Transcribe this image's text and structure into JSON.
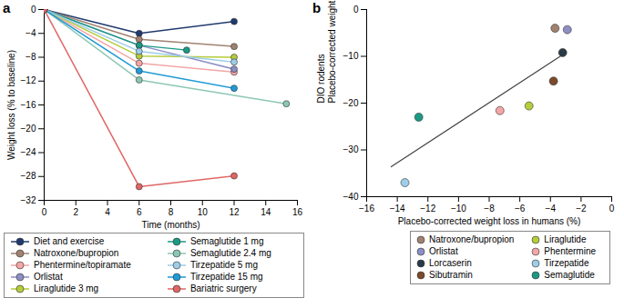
{
  "chart_data": [
    {
      "type": "line",
      "title": "a",
      "marker": "circle",
      "grid": false,
      "x_label": "Time (months)",
      "y_label": "Weight loss (% to baseline)",
      "xlim": [
        0,
        16
      ],
      "xticks": [
        0,
        2,
        4,
        6,
        8,
        10,
        12,
        14,
        16
      ],
      "ylim": [
        -32,
        0
      ],
      "yticks": [
        0,
        -4,
        -8,
        -12,
        -16,
        -20,
        -24,
        -28,
        -32
      ],
      "series": [
        {
          "name": "Diet and exercise",
          "color": "#1f3a6e",
          "x": [
            0,
            6,
            12
          ],
          "values": [
            0,
            -4,
            -2
          ]
        },
        {
          "name": "Natroxone/bupropion",
          "color": "#a08270",
          "x": [
            0,
            6,
            12
          ],
          "values": [
            0,
            -5,
            -6.2
          ]
        },
        {
          "name": "Phentermine/topiramate",
          "color": "#f4a6a6",
          "x": [
            0,
            6,
            12
          ],
          "values": [
            0,
            -9,
            -10.5
          ]
        },
        {
          "name": "Orlistat",
          "color": "#8d8fc4",
          "x": [
            0,
            6,
            12
          ],
          "values": [
            0,
            -6,
            -10
          ]
        },
        {
          "name": "Liraglutide 3 mg",
          "color": "#b5cc3b",
          "x": [
            0,
            6,
            12
          ],
          "values": [
            0,
            -7.8,
            -8
          ]
        },
        {
          "name": "Semaglutide 1 mg",
          "color": "#1a9a85",
          "x": [
            0,
            6,
            9
          ],
          "values": [
            0,
            -6,
            -6.8
          ]
        },
        {
          "name": "Semaglutide 2.4 mg",
          "color": "#8cc7b4",
          "x": [
            0,
            6,
            15.3
          ],
          "values": [
            0,
            -11.8,
            -15.8
          ]
        },
        {
          "name": "Tirzepatide 5 mg",
          "color": "#9ecde8",
          "x": [
            0,
            6,
            12
          ],
          "values": [
            0,
            -7,
            -8.8
          ]
        },
        {
          "name": "Tirzepatide 15 mg",
          "color": "#1f9ad6",
          "x": [
            0,
            6,
            12
          ],
          "values": [
            0,
            -10.3,
            -13.2
          ]
        },
        {
          "name": "Bariatric surgery",
          "color": "#e06666",
          "x": [
            0,
            6,
            12
          ],
          "values": [
            0,
            -29.7,
            -27.9
          ]
        }
      ]
    },
    {
      "type": "scatter",
      "title": "b",
      "marker": "circle",
      "grid": false,
      "x_label": "Placebo-corrected weight loss in humans (%)",
      "y_label": "DIO rodents\nPlacebo-corrected weight loss (%)",
      "xlim": [
        -16,
        0
      ],
      "xticks": [
        -16,
        -14,
        -12,
        -10,
        -8,
        -6,
        -4,
        -2,
        0
      ],
      "ylim": [
        -40,
        0
      ],
      "yticks": [
        0,
        -10,
        -20,
        -30,
        -40
      ],
      "trend_line": {
        "x": [
          -14.4,
          -3
        ],
        "values": [
          -33.6,
          -9.2
        ]
      },
      "series": [
        {
          "name": "Natroxone/bupropion",
          "color": "#a08270",
          "x": [
            -3.7
          ],
          "values": [
            -4
          ]
        },
        {
          "name": "Orlistat",
          "color": "#8d8fc4",
          "x": [
            -2.9
          ],
          "values": [
            -4.3
          ]
        },
        {
          "name": "Lorcaserin",
          "color": "#2b3a45",
          "x": [
            -3.2
          ],
          "values": [
            -9.2
          ]
        },
        {
          "name": "Sibutramin",
          "color": "#7a4a2a",
          "x": [
            -3.8
          ],
          "values": [
            -15.3
          ]
        },
        {
          "name": "Liraglutide",
          "color": "#b5cc3b",
          "x": [
            -5.4
          ],
          "values": [
            -20.6
          ]
        },
        {
          "name": "Phentermine",
          "color": "#f4a6a6",
          "x": [
            -7.3
          ],
          "values": [
            -21.6
          ]
        },
        {
          "name": "Tirzepatide",
          "color": "#9ecde8",
          "x": [
            -13.5
          ],
          "values": [
            -37
          ]
        },
        {
          "name": "Semaglutide",
          "color": "#1a9a85",
          "x": [
            -12.6
          ],
          "values": [
            -23
          ]
        }
      ]
    }
  ]
}
